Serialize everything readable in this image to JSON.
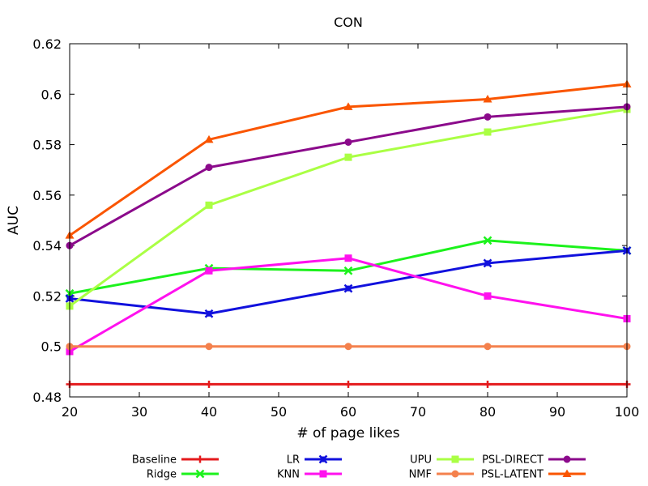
{
  "chart_data": {
    "type": "line",
    "title": "CON",
    "xlabel": "# of page likes",
    "ylabel": "AUC",
    "x": [
      20,
      40,
      60,
      80,
      100
    ],
    "xlim": [
      20,
      100
    ],
    "ylim": [
      0.48,
      0.62
    ],
    "xticks": [
      20,
      30,
      40,
      50,
      60,
      70,
      80,
      90,
      100
    ],
    "yticks": [
      0.48,
      0.5,
      0.52,
      0.54,
      0.56,
      0.58,
      0.6,
      0.62
    ],
    "ytick_labels": [
      "0.48",
      "0.5",
      "0.52",
      "0.54",
      "0.56",
      "0.58",
      "0.6",
      "0.62"
    ],
    "grid": false,
    "legend_position": "bottom",
    "series": [
      {
        "name": "Baseline",
        "color": "#e41a1c",
        "marker": "plus",
        "values": [
          0.485,
          0.485,
          0.485,
          0.485,
          0.485
        ]
      },
      {
        "name": "Ridge",
        "color": "#1cf21c",
        "marker": "x",
        "values": [
          0.521,
          0.531,
          0.53,
          0.542,
          0.538
        ]
      },
      {
        "name": "LR",
        "color": "#1111dd",
        "marker": "starsq",
        "values": [
          0.519,
          0.513,
          0.523,
          0.533,
          0.538
        ]
      },
      {
        "name": "KNN",
        "color": "#ff11ee",
        "marker": "square",
        "values": [
          0.498,
          0.53,
          0.535,
          0.52,
          0.511
        ]
      },
      {
        "name": "UPU",
        "color": "#aaff44",
        "marker": "square",
        "values": [
          0.516,
          0.556,
          0.575,
          0.585,
          0.594
        ]
      },
      {
        "name": "NMF",
        "color": "#f4814d",
        "marker": "circle",
        "values": [
          0.5,
          0.5,
          0.5,
          0.5,
          0.5
        ]
      },
      {
        "name": "PSL-DIRECT",
        "color": "#8b0a8b",
        "marker": "circle",
        "values": [
          0.54,
          0.571,
          0.581,
          0.591,
          0.595
        ]
      },
      {
        "name": "PSL-LATENT",
        "color": "#fa5500",
        "marker": "triangle",
        "values": [
          0.544,
          0.582,
          0.595,
          0.598,
          0.604
        ]
      }
    ]
  }
}
